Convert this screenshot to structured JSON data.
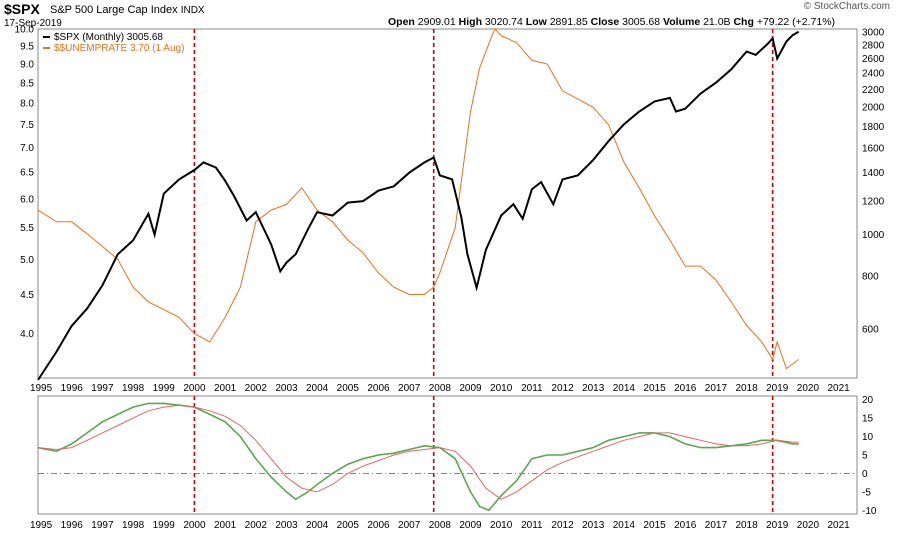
{
  "header": {
    "symbol": "$SPX",
    "name": "S&P 500 Large Cap Index",
    "exchange": "INDX",
    "date": "17-Sep-2019",
    "open_label": "Open",
    "open": "2909.01",
    "high_label": "High",
    "high": "3020.74",
    "low_label": "Low",
    "low": "2891.85",
    "close_label": "Close",
    "close": "3005.68",
    "volume_label": "Volume",
    "volume": "21.0B",
    "chg_label": "Chg",
    "chg": "+79.22 (+2.71%)",
    "credit": "© StockCharts.com"
  },
  "legend": {
    "spx": "$SPX (Monthly) 3005.68",
    "unemp": "$$UNEMPRATE 3.70 (1 Aug)"
  },
  "colors": {
    "spx": "#000000",
    "unemp": "#e8701a",
    "green": "#5aa650",
    "red": "#e06565",
    "vline": "#cc0000",
    "zero": "#5aa650"
  },
  "chart_data": [
    {
      "type": "line",
      "x_ticks": [
        "1995",
        "1996",
        "1997",
        "1998",
        "1999",
        "2000",
        "2001",
        "2002",
        "2003",
        "2004",
        "2005",
        "2006",
        "2007",
        "2008",
        "2009",
        "2010",
        "2011",
        "2012",
        "2013",
        "2014",
        "2015",
        "2016",
        "2017",
        "2018",
        "2019",
        "2020",
        "2021"
      ],
      "left_ticks": [
        "10.0",
        "9.5",
        "9.0",
        "8.5",
        "8.0",
        "7.5",
        "7.0",
        "6.5",
        "6.0",
        "5.5",
        "5.0",
        "4.5",
        "4.0"
      ],
      "right_ticks": [
        "3000",
        "2800",
        "2600",
        "2400",
        "2200",
        "2000",
        "1800",
        "1600",
        "1400",
        "1200",
        "1000",
        "800",
        "600"
      ],
      "left_scale": "log",
      "left_lim": [
        3.5,
        10.0
      ],
      "right_scale": "log",
      "right_lim": [
        460,
        3050
      ],
      "vertical_markers": [
        2000.0,
        2007.8,
        2018.85
      ],
      "series": [
        {
          "name": "$SPX (Monthly) 3005.68",
          "axis": "right",
          "x": [
            1994.9,
            1995.5,
            1996.0,
            1996.5,
            1997.0,
            1997.5,
            1998.0,
            1998.5,
            1998.7,
            1999.0,
            1999.5,
            2000.0,
            2000.3,
            2000.7,
            2001.0,
            2001.3,
            2001.7,
            2002.0,
            2002.5,
            2002.8,
            2003.0,
            2003.3,
            2003.7,
            2004.0,
            2004.5,
            2005.0,
            2005.5,
            2006.0,
            2006.5,
            2007.0,
            2007.5,
            2007.8,
            2008.0,
            2008.4,
            2008.7,
            2008.9,
            2009.2,
            2009.5,
            2010.0,
            2010.4,
            2010.7,
            2011.0,
            2011.3,
            2011.7,
            2012.0,
            2012.5,
            2013.0,
            2013.5,
            2014.0,
            2014.5,
            2015.0,
            2015.5,
            2015.7,
            2016.0,
            2016.5,
            2017.0,
            2017.5,
            2018.0,
            2018.3,
            2018.7,
            2018.85,
            2019.0,
            2019.3,
            2019.5,
            2019.7
          ],
          "y": [
            455,
            530,
            610,
            670,
            760,
            900,
            970,
            1120,
            1000,
            1250,
            1350,
            1420,
            1480,
            1440,
            1340,
            1230,
            1080,
            1130,
            950,
            820,
            860,
            900,
            1030,
            1130,
            1110,
            1190,
            1200,
            1270,
            1300,
            1400,
            1480,
            1520,
            1380,
            1350,
            1100,
            900,
            750,
            920,
            1110,
            1180,
            1090,
            1280,
            1330,
            1180,
            1350,
            1380,
            1500,
            1660,
            1820,
            1950,
            2060,
            2100,
            1950,
            1980,
            2150,
            2280,
            2450,
            2700,
            2650,
            2820,
            2900,
            2600,
            2850,
            2950,
            3005
          ]
        },
        {
          "name": "$$UNEMPRATE 3.70 (1 Aug)",
          "axis": "left",
          "x": [
            1994.9,
            1995.5,
            1996.0,
            1996.5,
            1997.0,
            1997.5,
            1998.0,
            1998.5,
            1999.0,
            1999.5,
            2000.0,
            2000.5,
            2001.0,
            2001.5,
            2002.0,
            2002.5,
            2003.0,
            2003.5,
            2004.0,
            2004.5,
            2005.0,
            2005.5,
            2006.0,
            2006.5,
            2007.0,
            2007.5,
            2007.8,
            2008.0,
            2008.5,
            2009.0,
            2009.3,
            2009.7,
            2009.8,
            2010.0,
            2010.5,
            2011.0,
            2011.5,
            2012.0,
            2012.5,
            2013.0,
            2013.5,
            2014.0,
            2014.5,
            2015.0,
            2015.5,
            2016.0,
            2016.5,
            2017.0,
            2017.5,
            2018.0,
            2018.5,
            2018.85,
            2019.0,
            2019.3,
            2019.7
          ],
          "y": [
            5.8,
            5.6,
            5.6,
            5.4,
            5.2,
            5.0,
            4.6,
            4.4,
            4.3,
            4.2,
            4.0,
            3.9,
            4.2,
            4.6,
            5.6,
            5.8,
            5.9,
            6.2,
            5.8,
            5.6,
            5.3,
            5.1,
            4.8,
            4.6,
            4.5,
            4.5,
            4.6,
            4.8,
            5.5,
            7.8,
            8.9,
            9.8,
            10.0,
            9.8,
            9.6,
            9.1,
            9.0,
            8.3,
            8.1,
            7.9,
            7.5,
            6.7,
            6.2,
            5.7,
            5.3,
            4.9,
            4.9,
            4.7,
            4.4,
            4.1,
            3.9,
            3.7,
            3.9,
            3.6,
            3.7
          ]
        }
      ]
    },
    {
      "type": "line",
      "x_ticks": [
        "1995",
        "1996",
        "1997",
        "1998",
        "1999",
        "2000",
        "2001",
        "2002",
        "2003",
        "2004",
        "2005",
        "2006",
        "2007",
        "2008",
        "2009",
        "2010",
        "2011",
        "2012",
        "2013",
        "2014",
        "2015",
        "2016",
        "2017",
        "2018",
        "2019",
        "2020",
        "2021"
      ],
      "y_ticks": [
        "20",
        "15",
        "10",
        "5",
        "0",
        "-5",
        "-10"
      ],
      "ylim": [
        -11,
        21
      ],
      "zero_line": 0,
      "vertical_markers": [
        2000.0,
        2007.8,
        2018.85
      ],
      "series": [
        {
          "color": "green",
          "x": [
            1994.9,
            1995.5,
            1996.0,
            1996.5,
            1997.0,
            1997.5,
            1998.0,
            1998.5,
            1999.0,
            1999.5,
            2000.0,
            2000.5,
            2001.0,
            2001.5,
            2002.0,
            2002.5,
            2003.0,
            2003.3,
            2003.7,
            2004.0,
            2004.5,
            2005.0,
            2005.5,
            2006.0,
            2006.5,
            2007.0,
            2007.5,
            2008.0,
            2008.5,
            2009.0,
            2009.3,
            2009.6,
            2010.0,
            2010.5,
            2011.0,
            2011.5,
            2012.0,
            2012.5,
            2013.0,
            2013.5,
            2014.0,
            2014.5,
            2015.0,
            2015.5,
            2016.0,
            2016.5,
            2017.0,
            2017.5,
            2018.0,
            2018.5,
            2019.0,
            2019.5,
            2019.7
          ],
          "y": [
            7,
            6,
            8,
            11,
            14,
            16,
            18,
            19,
            19,
            18.5,
            18,
            16,
            14,
            10,
            4,
            -1,
            -5,
            -7,
            -5,
            -3,
            0,
            2.5,
            4,
            5,
            5.5,
            6.5,
            7.5,
            7,
            4,
            -5,
            -9,
            -10,
            -6,
            -2,
            4,
            5,
            5,
            6,
            7,
            9,
            10,
            11,
            11,
            10,
            8,
            7,
            7,
            7.5,
            8,
            9,
            9,
            8,
            8
          ]
        },
        {
          "color": "red",
          "x": [
            1994.9,
            1995.5,
            1996.0,
            1996.5,
            1997.0,
            1997.5,
            1998.0,
            1998.5,
            1999.0,
            1999.5,
            2000.0,
            2000.5,
            2001.0,
            2001.5,
            2002.0,
            2002.5,
            2003.0,
            2003.5,
            2004.0,
            2004.5,
            2005.0,
            2005.5,
            2006.0,
            2006.5,
            2007.0,
            2007.5,
            2008.0,
            2008.5,
            2009.0,
            2009.5,
            2010.0,
            2010.5,
            2011.0,
            2011.5,
            2012.0,
            2012.5,
            2013.0,
            2013.5,
            2014.0,
            2014.5,
            2015.0,
            2015.5,
            2016.0,
            2016.5,
            2017.0,
            2017.5,
            2018.0,
            2018.5,
            2019.0,
            2019.5,
            2019.7
          ],
          "y": [
            7,
            6.5,
            7,
            9,
            11,
            13,
            15,
            17,
            18,
            18.5,
            18,
            17,
            15.5,
            13,
            9,
            4,
            -1,
            -4,
            -5,
            -3,
            0,
            2,
            3.5,
            5,
            6,
            6.5,
            7,
            6,
            2,
            -4,
            -7,
            -5,
            -2,
            1,
            3,
            4.5,
            6,
            7.5,
            9,
            10,
            11,
            11,
            10,
            9,
            8,
            7.5,
            7.5,
            8,
            9,
            8.5,
            8.5
          ]
        }
      ]
    }
  ]
}
